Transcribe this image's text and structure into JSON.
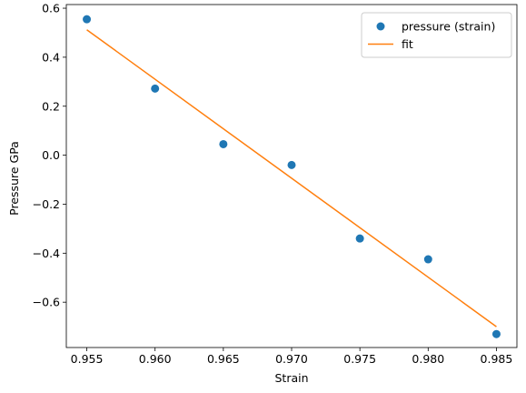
{
  "chart_data": {
    "type": "scatter",
    "xlabel": "Strain",
    "ylabel": "Pressure GPa",
    "xlim": [
      0.9535,
      0.9865
    ],
    "ylim": [
      -0.785,
      0.615
    ],
    "xticks": [
      {
        "value": 0.955,
        "label": "0.955"
      },
      {
        "value": 0.96,
        "label": "0.960"
      },
      {
        "value": 0.965,
        "label": "0.965"
      },
      {
        "value": 0.97,
        "label": "0.970"
      },
      {
        "value": 0.975,
        "label": "0.975"
      },
      {
        "value": 0.98,
        "label": "0.980"
      },
      {
        "value": 0.985,
        "label": "0.985"
      }
    ],
    "yticks": [
      {
        "value": 0.6,
        "label": "0.6"
      },
      {
        "value": 0.4,
        "label": "0.4"
      },
      {
        "value": 0.2,
        "label": "0.2"
      },
      {
        "value": 0.0,
        "label": "0.0"
      },
      {
        "value": -0.2,
        "label": "−0.2"
      },
      {
        "value": -0.4,
        "label": "−0.4"
      },
      {
        "value": -0.6,
        "label": "−0.6"
      }
    ],
    "grid": false,
    "legend_position": "top-right",
    "series": [
      {
        "name": "pressure (strain)",
        "kind": "markers",
        "color": "#1f77b4",
        "x": [
          0.955,
          0.96,
          0.965,
          0.97,
          0.975,
          0.98,
          0.985
        ],
        "y": [
          0.555,
          0.272,
          0.045,
          -0.04,
          -0.34,
          -0.425,
          -0.73
        ]
      },
      {
        "name": "fit",
        "kind": "line",
        "color": "#ff7f0e",
        "x": [
          0.955,
          0.985
        ],
        "y": [
          0.512,
          -0.7
        ]
      }
    ]
  }
}
